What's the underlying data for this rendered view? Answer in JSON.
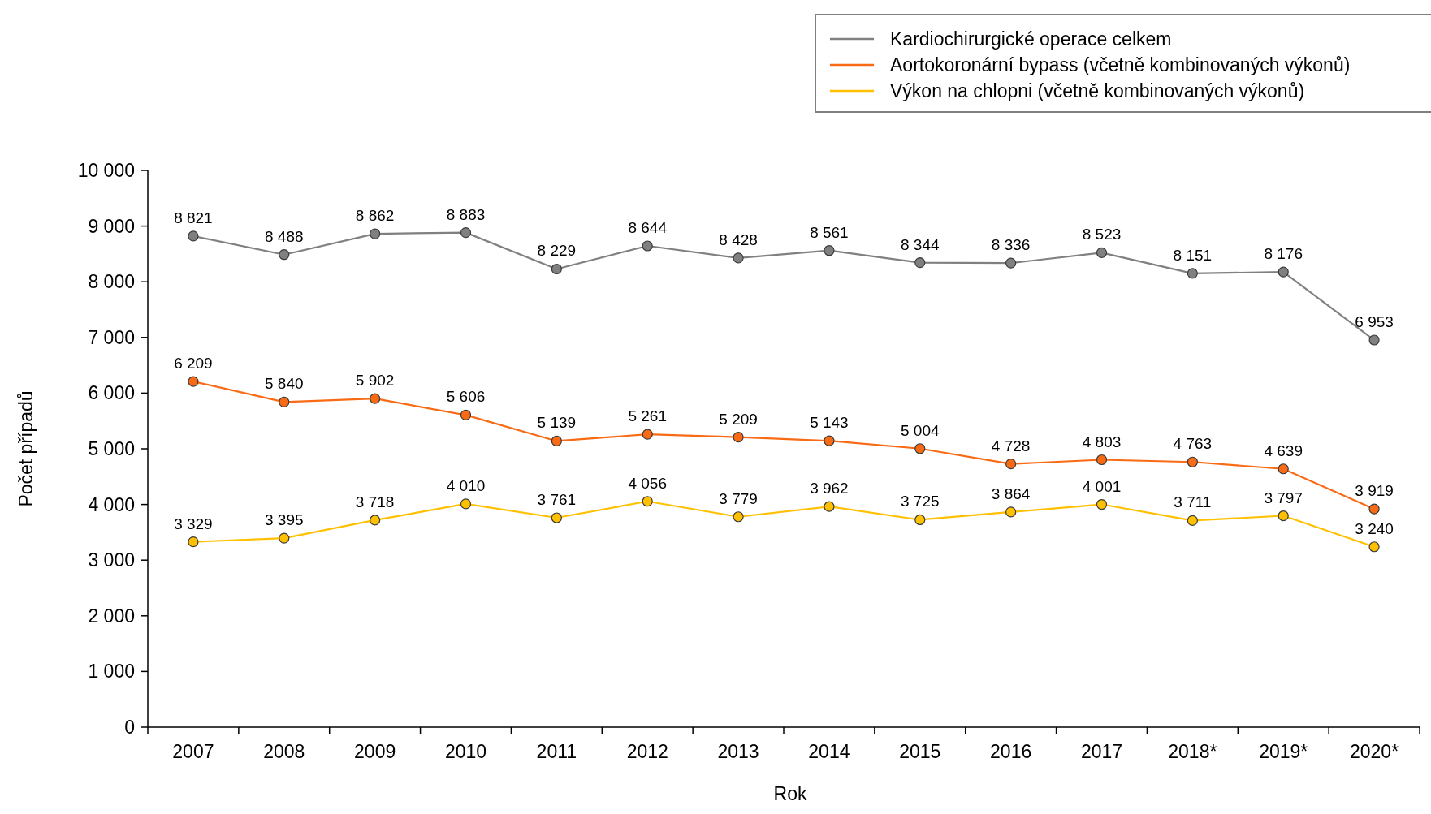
{
  "chart_data": {
    "type": "line",
    "xlabel": "Rok",
    "ylabel": "Počet případů",
    "categories": [
      "2007",
      "2008",
      "2009",
      "2010",
      "2011",
      "2012",
      "2013",
      "2014",
      "2015",
      "2016",
      "2017",
      "2018*",
      "2019*",
      "2020*"
    ],
    "series": [
      {
        "name": "Kardiochirurgické operace celkem",
        "color": "#808080",
        "values": [
          8821,
          8488,
          8862,
          8883,
          8229,
          8644,
          8428,
          8561,
          8344,
          8336,
          8523,
          8151,
          8176,
          6953
        ]
      },
      {
        "name": "Aortokoronární bypass (včetně kombinovaných výkonů)",
        "color": "#f96a14",
        "values": [
          6209,
          5840,
          5902,
          5606,
          5139,
          5261,
          5209,
          5143,
          5004,
          4728,
          4803,
          4763,
          4639,
          3919
        ]
      },
      {
        "name": "Výkon na chlopni (včetně kombinovaných výkonů)",
        "color": "#ffc000",
        "values": [
          3329,
          3395,
          3718,
          4010,
          3761,
          4056,
          3779,
          3962,
          3725,
          3864,
          4001,
          3711,
          3797,
          3240
        ]
      }
    ],
    "ylim": [
      0,
      10000
    ],
    "yticks": [
      0,
      {
        "value": 1000,
        "label": "1 000"
      },
      {
        "value": 2000,
        "label": "2 000"
      },
      {
        "value": 3000,
        "label": "3 000"
      },
      {
        "value": 4000,
        "label": "4 000"
      },
      {
        "value": 5000,
        "label": "5 000"
      },
      {
        "value": 6000,
        "label": "6 000"
      },
      {
        "value": 7000,
        "label": "7 000"
      },
      {
        "value": 8000,
        "label": "8 000"
      },
      {
        "value": 9000,
        "label": "9 000"
      },
      {
        "value": 10000,
        "label": "10 000"
      }
    ],
    "grid": false,
    "legend": "top right",
    "marker": "circle",
    "line_style": "solid",
    "data_labels": true
  }
}
